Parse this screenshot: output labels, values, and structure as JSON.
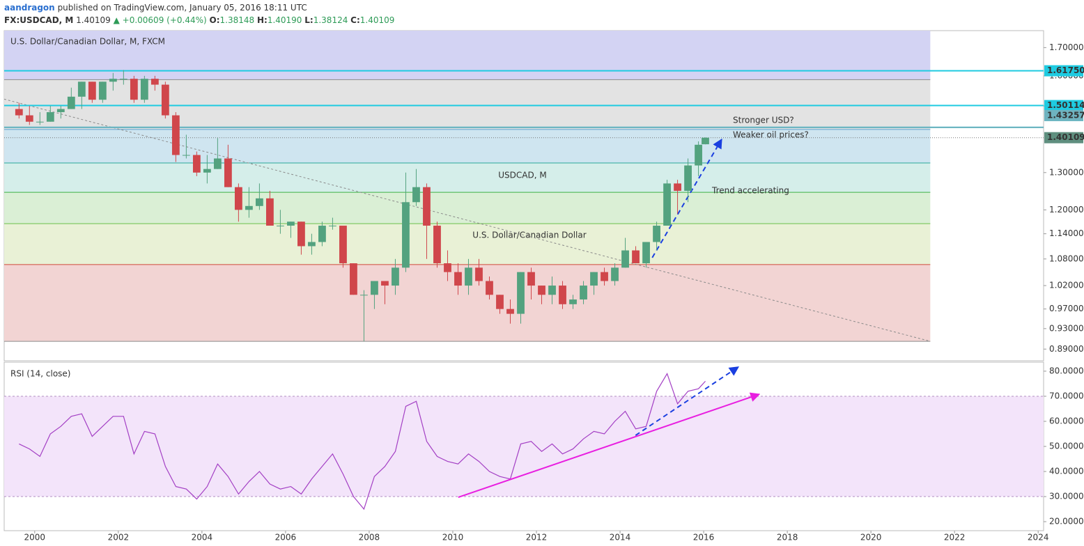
{
  "header": {
    "author": "aandragon",
    "published": "published on TradingView.com, January 05, 2016 18:11 UTC",
    "symbol": "FX:USDCAD, M",
    "last": "1.40109",
    "change": "▲ +0.00609 (+0.44%)",
    "quote": [
      {
        "label": "O:",
        "value": "1.38148"
      },
      {
        "label": "H:",
        "value": "1.40190"
      },
      {
        "label": "L:",
        "value": "1.38124"
      },
      {
        "label": "C:",
        "value": "1.40109"
      }
    ]
  },
  "chart_data": [
    {
      "type": "candlestick",
      "title": "U.S. Dollar/Canadian Dollar, M, FXCM",
      "watermark": [
        "USDCAD, M",
        "U.S. Dollar/Canadian Dollar"
      ],
      "log_scale": true,
      "up_color": "#53a27f",
      "down_color": "#d0464b",
      "xlim": [
        1999.27,
        2024.13
      ],
      "xticks": [
        2000,
        2002,
        2004,
        2006,
        2008,
        2010,
        2012,
        2014,
        2016,
        2018,
        2020,
        2022,
        2024
      ],
      "ylim": [
        0.868,
        1.763
      ],
      "yticks": [
        {
          "value": 1.7,
          "label": "1.70000"
        },
        {
          "value": 1.6,
          "label": "1.60000"
        },
        {
          "value": 1.5,
          "label": "1.50000"
        },
        {
          "value": 1.3,
          "label": "1.30000"
        },
        {
          "value": 1.2,
          "label": "1.20000"
        },
        {
          "value": 1.14,
          "label": "1.14000"
        },
        {
          "value": 1.08,
          "label": "1.08000"
        },
        {
          "value": 1.02,
          "label": "1.02000"
        },
        {
          "value": 0.97,
          "label": "0.97000"
        },
        {
          "value": 0.93,
          "label": "0.93000"
        },
        {
          "value": 0.89,
          "label": "0.89000"
        }
      ],
      "x": [
        1999.625,
        1999.875,
        2000.125,
        2000.375,
        2000.625,
        2000.875,
        2001.125,
        2001.375,
        2001.625,
        2001.875,
        2002.125,
        2002.375,
        2002.625,
        2002.875,
        2003.125,
        2003.375,
        2003.625,
        2003.875,
        2004.125,
        2004.375,
        2004.625,
        2004.875,
        2005.125,
        2005.375,
        2005.625,
        2005.875,
        2006.125,
        2006.375,
        2006.625,
        2006.875,
        2007.125,
        2007.375,
        2007.625,
        2007.875,
        2008.125,
        2008.375,
        2008.625,
        2008.875,
        2009.125,
        2009.375,
        2009.625,
        2009.875,
        2010.125,
        2010.375,
        2010.625,
        2010.875,
        2011.125,
        2011.375,
        2011.625,
        2011.875,
        2012.125,
        2012.375,
        2012.625,
        2012.875,
        2013.125,
        2013.375,
        2013.625,
        2013.875,
        2014.125,
        2014.375,
        2014.625,
        2014.875,
        2015.125,
        2015.375,
        2015.625,
        2015.875,
        2016.04
      ],
      "open": [
        1.49,
        1.47,
        1.45,
        1.45,
        1.48,
        1.49,
        1.53,
        1.58,
        1.52,
        1.58,
        1.59,
        1.59,
        1.52,
        1.59,
        1.57,
        1.47,
        1.35,
        1.35,
        1.3,
        1.31,
        1.34,
        1.26,
        1.2,
        1.21,
        1.23,
        1.16,
        1.16,
        1.17,
        1.11,
        1.12,
        1.16,
        1.16,
        1.07,
        1.0,
        1.0,
        1.03,
        1.02,
        1.06,
        1.22,
        1.26,
        1.16,
        1.07,
        1.05,
        1.02,
        1.06,
        1.03,
        1.0,
        0.97,
        0.96,
        1.05,
        1.02,
        1.0,
        1.02,
        0.98,
        0.99,
        1.02,
        1.05,
        1.03,
        1.06,
        1.1,
        1.07,
        1.12,
        1.16,
        1.27,
        1.25,
        1.32,
        1.38148
      ],
      "high": [
        1.51,
        1.5,
        1.48,
        1.5,
        1.5,
        1.56,
        1.58,
        1.58,
        1.58,
        1.61,
        1.62,
        1.6,
        1.6,
        1.6,
        1.58,
        1.48,
        1.41,
        1.36,
        1.35,
        1.4,
        1.38,
        1.27,
        1.26,
        1.27,
        1.25,
        1.2,
        1.17,
        1.17,
        1.14,
        1.17,
        1.18,
        1.16,
        1.07,
        1.01,
        1.03,
        1.03,
        1.08,
        1.3,
        1.31,
        1.27,
        1.17,
        1.1,
        1.07,
        1.08,
        1.08,
        1.04,
        1.0,
        0.99,
        1.05,
        1.06,
        1.02,
        1.04,
        1.03,
        1.0,
        1.03,
        1.05,
        1.06,
        1.07,
        1.13,
        1.11,
        1.12,
        1.17,
        1.28,
        1.28,
        1.34,
        1.39,
        1.4019
      ],
      "low": [
        1.46,
        1.44,
        1.44,
        1.45,
        1.46,
        1.49,
        1.49,
        1.51,
        1.51,
        1.55,
        1.57,
        1.51,
        1.51,
        1.55,
        1.46,
        1.33,
        1.34,
        1.29,
        1.27,
        1.31,
        1.26,
        1.17,
        1.18,
        1.2,
        1.16,
        1.14,
        1.13,
        1.09,
        1.09,
        1.11,
        1.15,
        1.06,
        1.0,
        0.905,
        0.97,
        0.98,
        1.0,
        1.05,
        1.21,
        1.08,
        1.06,
        1.03,
        1.0,
        1.0,
        1.02,
        0.99,
        0.96,
        0.94,
        0.94,
        0.99,
        0.98,
        0.98,
        0.97,
        0.97,
        0.98,
        1.0,
        1.02,
        1.02,
        1.06,
        1.07,
        1.06,
        1.1,
        1.16,
        1.19,
        1.22,
        1.29,
        1.38124
      ],
      "close": [
        1.47,
        1.45,
        1.45,
        1.48,
        1.49,
        1.53,
        1.58,
        1.52,
        1.58,
        1.59,
        1.59,
        1.52,
        1.59,
        1.57,
        1.47,
        1.35,
        1.35,
        1.3,
        1.31,
        1.34,
        1.26,
        1.2,
        1.21,
        1.23,
        1.16,
        1.16,
        1.17,
        1.11,
        1.12,
        1.16,
        1.16,
        1.07,
        1.0,
        1.0,
        1.03,
        1.02,
        1.06,
        1.22,
        1.26,
        1.16,
        1.07,
        1.05,
        1.02,
        1.06,
        1.03,
        1.0,
        0.97,
        0.96,
        1.05,
        1.02,
        1.0,
        1.02,
        0.98,
        0.99,
        1.02,
        1.05,
        1.03,
        1.06,
        1.1,
        1.07,
        1.12,
        1.16,
        1.27,
        1.25,
        1.32,
        1.38,
        1.40109
      ],
      "fib": {
        "x": [
          1999.27,
          2021.42
        ],
        "levels": [
          1.587,
          1.426,
          1.327,
          1.246,
          1.165,
          1.067,
          0.905
        ],
        "zone_colors": [
          "#d3d3f3",
          "#e3e3e3",
          "#cfe5f0",
          "#d5eeea",
          "#daefd5",
          "#e9f1d6",
          "#f2d4d3"
        ],
        "line_colors": [
          "#8a8a8a",
          "#5aa0d0",
          "#2aa89a",
          "#3cb043",
          "#6cbf4a",
          "#d04a3a",
          "#8a8a8a"
        ]
      },
      "price_lines": [
        {
          "value": 1.6175,
          "label": "1.61750",
          "color": "#1ecbe1"
        },
        {
          "value": 1.50114,
          "label": "1.50114",
          "color": "#1ecbe1"
        },
        {
          "value": 1.43257,
          "label": "1.43257",
          "color": "#1ecbe1"
        },
        {
          "value": 1.43257,
          "label": "1.43257",
          "color": "#6fb3bf"
        },
        {
          "value": 1.40109,
          "label": "1.40109",
          "color": "#5f8f7f"
        }
      ],
      "drawings": [
        {
          "x": [
            1999.27,
            2021.42
          ],
          "y": [
            1.522,
            0.905
          ],
          "color": "#8a8a8a",
          "dash": "3 3",
          "arrow": false
        },
        {
          "x": [
            2014.77,
            2016.43
          ],
          "y": [
            1.083,
            1.396
          ],
          "color": "#1a3fe0",
          "dash": "7 5",
          "arrow": true
        }
      ],
      "annotations": [
        "Stronger USD?",
        "Weaker oil prices?",
        "Trend accelerating"
      ],
      "annotation_color": "#e8191c"
    },
    {
      "type": "line",
      "title": "RSI (14, close)",
      "color": "#a33fc4",
      "xlim": [
        1999.27,
        2024.13
      ],
      "ylim": [
        16.4,
        83.6
      ],
      "yticks": [
        {
          "value": 80,
          "label": "80.0000"
        },
        {
          "value": 70,
          "label": "70.0000"
        },
        {
          "value": 60,
          "label": "60.0000"
        },
        {
          "value": 50,
          "label": "50.0000"
        },
        {
          "value": 40,
          "label": "40.0000"
        },
        {
          "value": 30,
          "label": "30.0000"
        },
        {
          "value": 20,
          "label": "20.0000"
        }
      ],
      "band": [
        30,
        70
      ],
      "band_color": "#f3e4fa",
      "x": [
        1999.625,
        1999.875,
        2000.125,
        2000.375,
        2000.625,
        2000.875,
        2001.125,
        2001.375,
        2001.625,
        2001.875,
        2002.125,
        2002.375,
        2002.625,
        2002.875,
        2003.125,
        2003.375,
        2003.625,
        2003.875,
        2004.125,
        2004.375,
        2004.625,
        2004.875,
        2005.125,
        2005.375,
        2005.625,
        2005.875,
        2006.125,
        2006.375,
        2006.625,
        2006.875,
        2007.125,
        2007.375,
        2007.625,
        2007.875,
        2008.125,
        2008.375,
        2008.625,
        2008.875,
        2009.125,
        2009.375,
        2009.625,
        2009.875,
        2010.125,
        2010.375,
        2010.625,
        2010.875,
        2011.125,
        2011.375,
        2011.625,
        2011.875,
        2012.125,
        2012.375,
        2012.625,
        2012.875,
        2013.125,
        2013.375,
        2013.625,
        2013.875,
        2014.125,
        2014.375,
        2014.625,
        2014.875,
        2015.125,
        2015.375,
        2015.625,
        2015.875,
        2016.04
      ],
      "values": [
        51,
        49,
        46,
        55,
        58,
        62,
        63,
        54,
        58,
        62,
        62,
        47,
        56,
        55,
        42,
        34,
        33,
        29,
        34,
        43,
        38,
        31,
        36,
        40,
        35,
        33,
        34,
        31,
        37,
        42,
        47,
        39,
        30,
        25,
        38,
        42,
        48,
        66,
        68,
        52,
        46,
        44,
        43,
        47,
        44,
        40,
        38,
        37,
        51,
        52,
        48,
        51,
        47,
        49,
        53,
        56,
        55,
        60,
        64,
        57,
        58,
        72,
        79,
        67,
        72,
        73,
        76
      ],
      "drawings": [
        {
          "x": [
            2014.37,
            2016.83
          ],
          "y": [
            54.4,
            81.7
          ],
          "color": "#1a3fe0",
          "dash": "7 5",
          "arrow": true
        },
        {
          "x": [
            2010.13,
            2017.33
          ],
          "y": [
            29.7,
            70.8
          ],
          "color": "#e81ee0",
          "dash": "",
          "arrow": true
        }
      ]
    }
  ]
}
